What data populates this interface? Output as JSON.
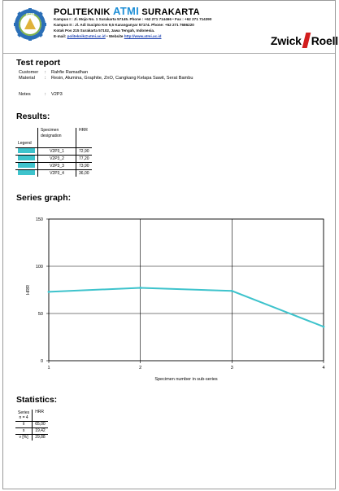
{
  "header": {
    "institution_prefix": "POLITEKNIK",
    "institution_atmi": "ATMI",
    "institution_suffix": "SURAKARTA",
    "logo_text": "ATMI",
    "campus1": "Kampus I : Jl. Mojo No. 1 Surakarta 57145.  Phone : +62 271 714466  •  Fax : +62 271 714390",
    "campus2": "Kampus II : Jl. Adi Sucipto Km 9,5 Karanganyar 57174.  Phone: +62 271 7686220",
    "pobox": "Kotak Pos 215  Surakarta 57102, Jawa Tengah, Indonesia.",
    "email_label": "E-mail:",
    "email": "politeknik@atmi.ac.id",
    "website_label": "•  Website",
    "website": "http://www.atmi.ac.id",
    "brand_left": "Zwick",
    "brand_right": "Roell",
    "accent_color": "#1f8fd6",
    "brand_color": "#d21e1e"
  },
  "report": {
    "title": "Test report",
    "customer_label": "Customer",
    "customer": "Rahfie Ramadhan",
    "material_label": "Material",
    "material": "Resin, Alumina, Graphite, ZnO, Cangkang Kelapa Sawit, Serat Bambu",
    "notes_label": "Notes",
    "notes": "V2P3",
    "colon": ":"
  },
  "results": {
    "title": "Results:",
    "legend_header": "Legend",
    "col_specimen": "Specimen designation",
    "col_hrr": "HRR",
    "rows": [
      {
        "specimen": "V2P3_1",
        "hrr": "72,90"
      },
      {
        "specimen": "V2P3_2",
        "hrr": "77,20"
      },
      {
        "specimen": "V2P3_3",
        "hrr": "73,90"
      },
      {
        "specimen": "V2P3_4",
        "hrr": "36,00"
      }
    ],
    "swatch_color": "#3ec3cc"
  },
  "series_graph": {
    "title": "Series graph:"
  },
  "chart_data": {
    "type": "line",
    "x": [
      1,
      2,
      3,
      4
    ],
    "y": [
      72.9,
      77.2,
      73.9,
      36.0
    ],
    "xlabel": "Specimen number in sub-series",
    "ylabel": "HRR",
    "xticks": [
      "1",
      "2",
      "3",
      "4"
    ],
    "yticks": [
      "0",
      "50",
      "100",
      "150"
    ],
    "xlim": [
      1,
      4
    ],
    "ylim": [
      0,
      150
    ],
    "grid": true,
    "line_color": "#3ec3cc"
  },
  "statistics": {
    "title": "Statistics:",
    "col_series": "Series",
    "col_series_sub": "n = 4",
    "col_hrr": "HRR",
    "rows": [
      {
        "label": "x̄",
        "value": "65,00"
      },
      {
        "label": "s",
        "value": "19,42"
      },
      {
        "label": "ν [%]",
        "value": "29,88"
      }
    ]
  }
}
